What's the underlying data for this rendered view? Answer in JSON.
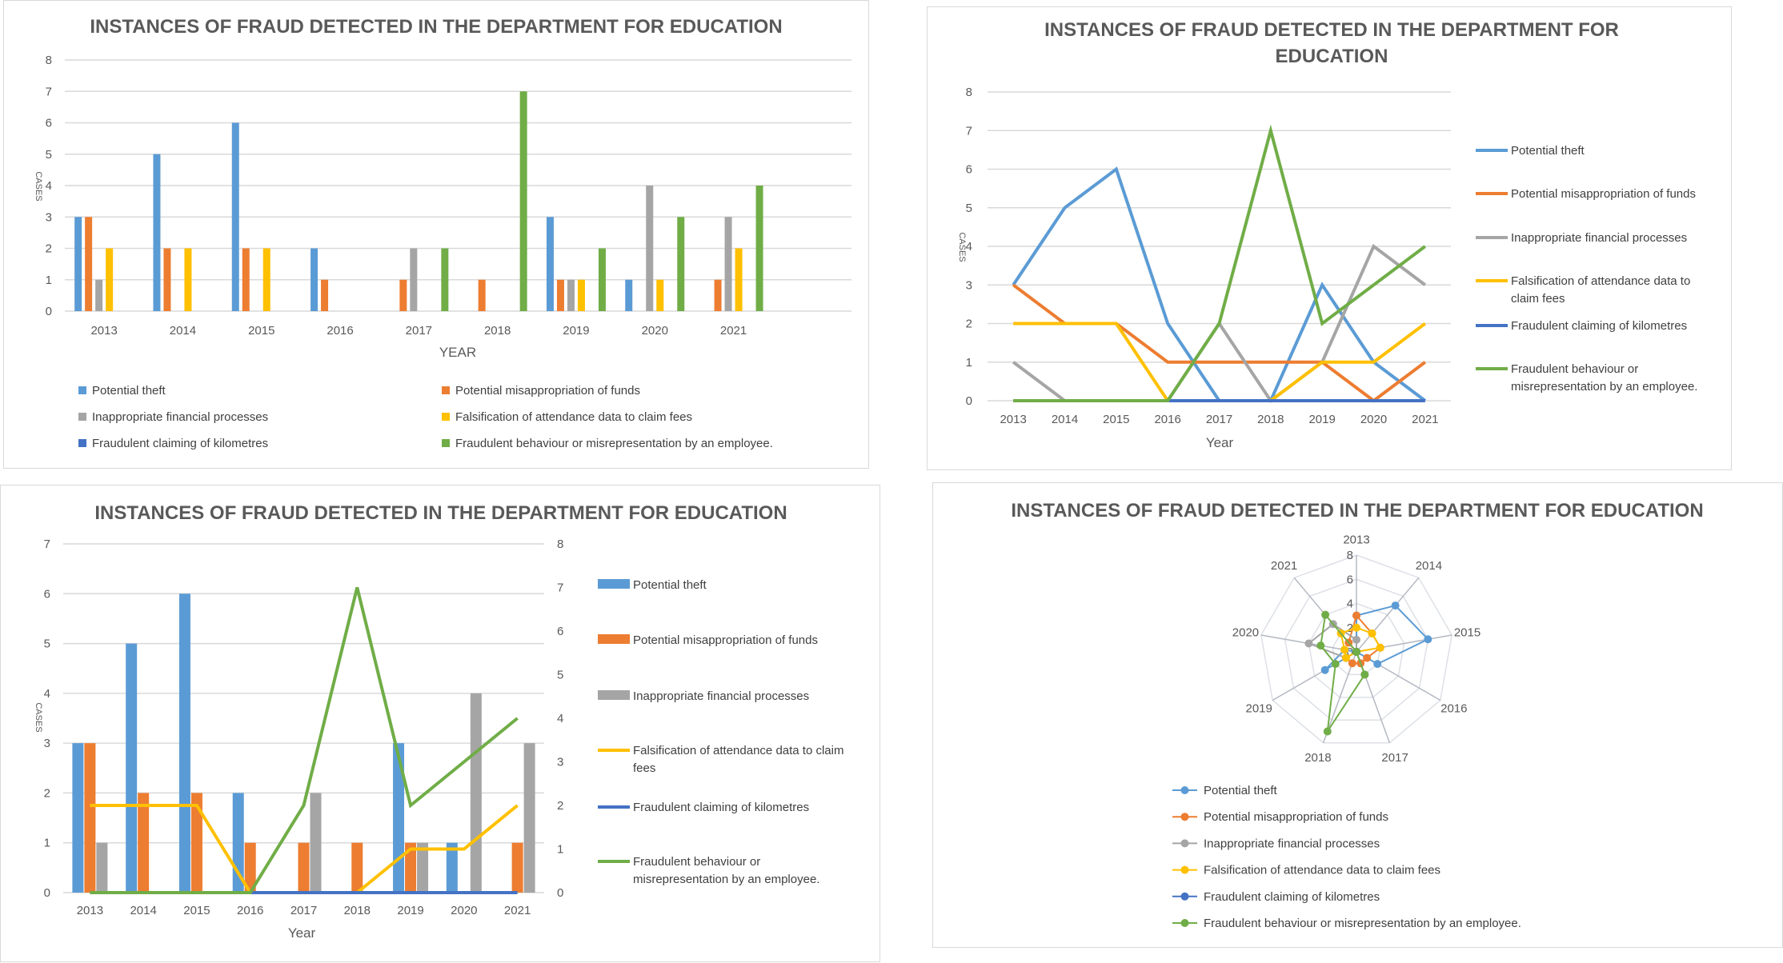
{
  "chart_data": [
    {
      "type": "bar",
      "title": "INSTANCES OF FRAUD DETECTED IN THE DEPARTMENT FOR EDUCATION",
      "xlabel": "YEAR",
      "ylabel": "CASES",
      "ylim": [
        0,
        8
      ],
      "yticks": [
        0,
        1,
        2,
        3,
        4,
        5,
        6,
        7,
        8
      ],
      "grid": true,
      "legend": "bottom",
      "categories": [
        "2013",
        "2014",
        "2015",
        "2016",
        "2017",
        "2018",
        "2019",
        "2020",
        "2021"
      ],
      "series": [
        {
          "name": "Potential  theft",
          "color": "#5b9bd5",
          "values": [
            3,
            5,
            6,
            2,
            0,
            0,
            3,
            1,
            0
          ]
        },
        {
          "name": "Potential misappropriation of funds",
          "color": "#ed7d31",
          "values": [
            3,
            2,
            2,
            1,
            1,
            1,
            1,
            0,
            1
          ]
        },
        {
          "name": "Inappropriate financial processes",
          "color": "#a5a5a5",
          "values": [
            1,
            0,
            0,
            0,
            2,
            0,
            1,
            4,
            3
          ]
        },
        {
          "name": "Falsification of attendance data to claim fees",
          "color": "#ffc000",
          "values": [
            2,
            2,
            2,
            0,
            0,
            0,
            1,
            1,
            2
          ]
        },
        {
          "name": "Fraudulent claiming of kilometres",
          "color": "#4472c4",
          "values": [
            0,
            0,
            0,
            0,
            0,
            0,
            0,
            0,
            0
          ]
        },
        {
          "name": "Fraudulent behaviour or misrepresentation by an employee.",
          "color": "#70ad47",
          "values": [
            0,
            0,
            0,
            0,
            2,
            7,
            2,
            3,
            4
          ]
        }
      ]
    },
    {
      "type": "line",
      "title_lines": [
        "INSTANCES OF FRAUD DETECTED IN THE DEPARTMENT FOR",
        "EDUCATION"
      ],
      "xlabel": "Year",
      "ylabel": "CASES",
      "ylim": [
        0,
        8
      ],
      "legend": "right",
      "legend_lines": [
        [
          "Potential  theft"
        ],
        [
          "Potential misappropriation of funds"
        ],
        [
          "Inappropriate financial processes"
        ],
        [
          "Falsification of attendance data to",
          "claim fees"
        ],
        [
          "Fraudulent claiming of kilometres"
        ],
        [
          "Fraudulent behaviour or",
          "misrepresentation by an employee."
        ]
      ]
    },
    {
      "type": "bar+line",
      "title": "INSTANCES OF FRAUD DETECTED IN THE DEPARTMENT FOR EDUCATION",
      "xlabel": "Year",
      "ylabel": "CASES",
      "ylim": [
        0,
        7
      ],
      "y2lim": [
        0,
        8
      ],
      "bar_series": [
        0,
        1,
        2
      ],
      "line_series": [
        3,
        4,
        5
      ],
      "legend": "right",
      "legend_lines": [
        [
          "Potential  theft"
        ],
        [
          "Potential misappropriation of funds"
        ],
        [
          "Inappropriate financial processes"
        ],
        [
          "Falsification of attendance data to claim",
          "fees"
        ],
        [
          "Fraudulent claiming of kilometres"
        ],
        [
          "Fraudulent behaviour or",
          "misrepresentation by an employee."
        ]
      ]
    },
    {
      "type": "radar",
      "title": "INSTANCES OF FRAUD DETECTED IN THE DEPARTMENT FOR EDUCATION",
      "rlim": [
        0,
        8
      ],
      "rticks": [
        0,
        2,
        4,
        6,
        8
      ],
      "legend": "bottom"
    }
  ]
}
